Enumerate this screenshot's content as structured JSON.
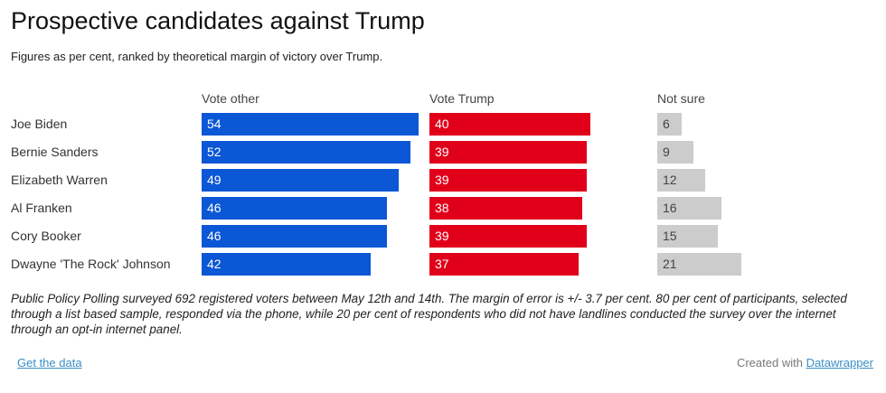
{
  "chart_data": {
    "type": "bar",
    "title": "Prospective candidates against Trump",
    "subtitle": "Figures as per cent, ranked by theoretical margin of victory over Trump.",
    "categories": [
      "Joe Biden",
      "Bernie Sanders",
      "Elizabeth Warren",
      "Al Franken",
      "Cory Booker",
      "Dwayne 'The Rock' Johnson"
    ],
    "series": [
      {
        "name": "Vote other",
        "color": "#0b57d6",
        "text_color": "#ffffff",
        "values": [
          54,
          52,
          49,
          46,
          46,
          42
        ]
      },
      {
        "name": "Vote Trump",
        "color": "#e0001a",
        "text_color": "#ffffff",
        "values": [
          40,
          39,
          39,
          38,
          39,
          37
        ]
      },
      {
        "name": "Not sure",
        "color": "#cccccc",
        "text_color": "#444444",
        "values": [
          6,
          9,
          12,
          16,
          15,
          21
        ]
      }
    ],
    "xlabel": "",
    "ylabel": "",
    "grid": false,
    "legend": "column headers"
  },
  "notes": "Public Policy Polling surveyed 692 registered voters between May 12th and 14th. The margin of error is +/- 3.7 per cent. 80 per cent of participants, selected through a list based sample, responded via the phone, while 20 per cent of respondents who did not have landlines conducted the survey over the internet through an opt-in internet panel.",
  "footer": {
    "get_data_label": "Get the data",
    "created_with_label": "Created with",
    "datawrapper_label": "Datawrapper"
  }
}
